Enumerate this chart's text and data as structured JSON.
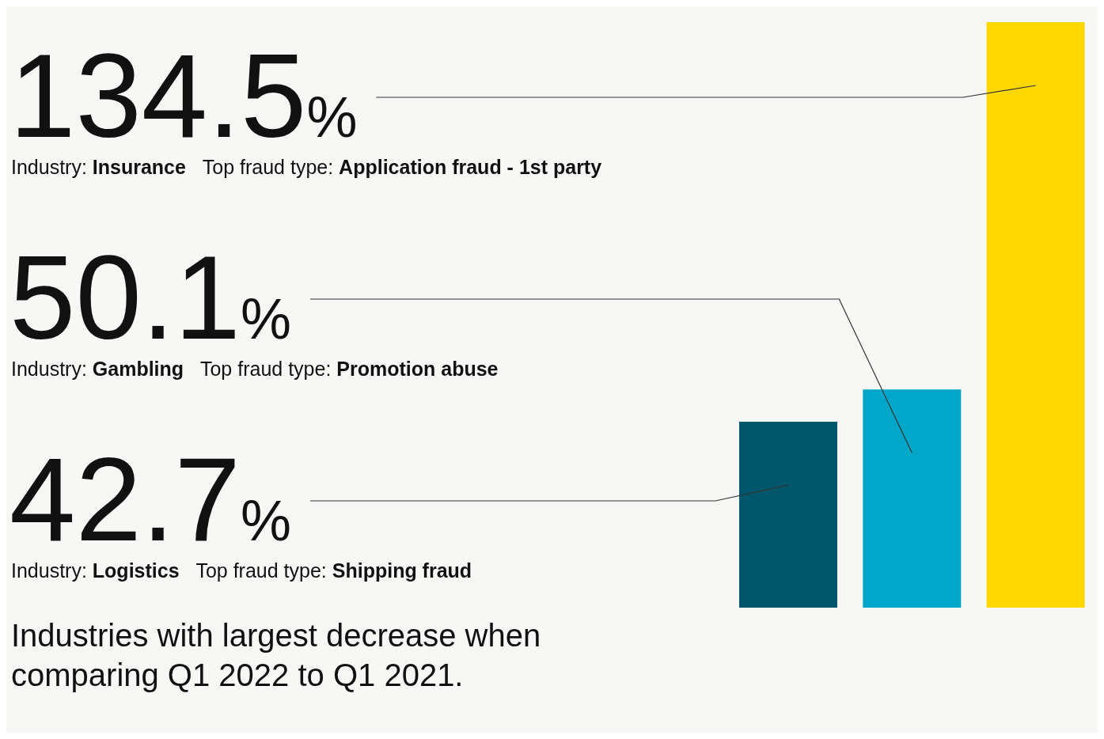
{
  "chart_data": {
    "type": "bar",
    "title": "Industries with largest decrease when comparing Q1 2022 to Q1 2021.",
    "categories": [
      null,
      null,
      null
    ],
    "values": [
      42.7,
      50.1,
      134.5
    ],
    "colors": [
      "#00566a",
      "#00a7c9",
      "#fcd800"
    ],
    "value_labels": [
      "42.7%",
      "50.1%",
      "134.5%"
    ],
    "annotations": [
      "Industry: Insurance  Top fraud type: Application fraud - 1st party",
      "Industry: Gambling  Top fraud type: Promotion abuse",
      "Industry: Logistics  Top fraud type: Shipping fraud"
    ]
  }
}
